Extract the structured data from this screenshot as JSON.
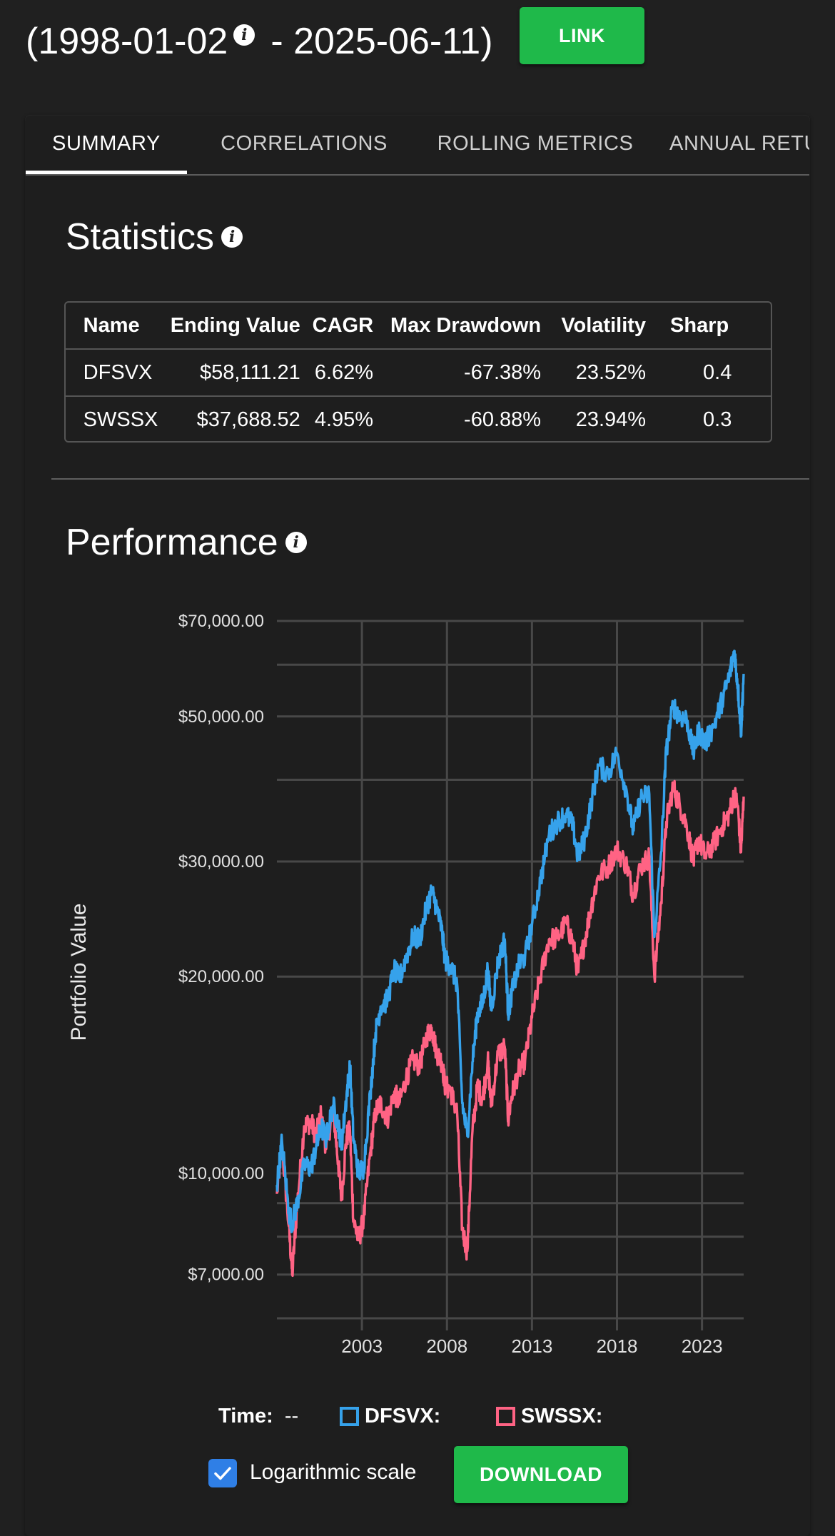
{
  "header": {
    "date_start": "(1998-01-02",
    "date_end": " - 2025-06-11)",
    "link_label": "LINK"
  },
  "tabs": [
    {
      "label": "SUMMARY",
      "active": true
    },
    {
      "label": "CORRELATIONS",
      "active": false
    },
    {
      "label": "ROLLING METRICS",
      "active": false
    },
    {
      "label": "ANNUAL RETU",
      "active": false
    }
  ],
  "statistics": {
    "title": "Statistics",
    "columns": [
      "Name",
      "Ending Value",
      "CAGR",
      "Max Drawdown",
      "Volatility",
      "Sharp"
    ],
    "rows": [
      [
        "DFSVX",
        "$58,111.21",
        "6.62%",
        "-67.38%",
        "23.52%",
        "0.4"
      ],
      [
        "SWSSX",
        "$37,688.52",
        "4.95%",
        "-60.88%",
        "23.94%",
        "0.3"
      ]
    ]
  },
  "performance": {
    "title": "Performance",
    "legend": {
      "time_label": "Time:",
      "time_value": "--",
      "series1": "DFSVX:",
      "series2": "SWSSX:"
    },
    "log_scale_label": "Logarithmic scale",
    "log_scale_checked": true,
    "download_label": "DOWNLOAD"
  },
  "colors": {
    "accent_green": "#1fb94a",
    "dfsvx": "#36a2eb",
    "swssx": "#ff6384",
    "checkbox": "#2f7fe6"
  },
  "chart_data": {
    "type": "line",
    "ylabel": "Portfolio Value",
    "xlabel": "",
    "y_scale": "log",
    "ylim": [
      6000,
      70000
    ],
    "y_ticks": [
      7000,
      10000,
      20000,
      30000,
      50000,
      70000
    ],
    "y_tick_labels": [
      "$7,000.00",
      "$10,000.00",
      "$20,000.00",
      "$30,000.00",
      "$50,000.00",
      "$70,000.00"
    ],
    "xlim": [
      1998.0,
      2025.45
    ],
    "x_ticks": [
      2003,
      2008,
      2013,
      2018,
      2023
    ],
    "x_tick_labels": [
      "2003",
      "2008",
      "2013",
      "2018",
      "2023"
    ],
    "grid": true,
    "series": [
      {
        "name": "DFSVX",
        "color": "#36a2eb",
        "x": [
          1998.0,
          1998.3,
          1998.7,
          1998.9,
          1999.2,
          1999.6,
          2000.0,
          2000.3,
          2000.6,
          2000.9,
          2001.3,
          2001.6,
          2001.8,
          2002.1,
          2002.3,
          2002.5,
          2002.8,
          2003.1,
          2003.5,
          2003.8,
          2004.1,
          2004.5,
          2004.9,
          2005.2,
          2005.6,
          2006.0,
          2006.4,
          2006.8,
          2007.1,
          2007.4,
          2007.7,
          2007.9,
          2008.2,
          2008.6,
          2008.9,
          2009.2,
          2009.5,
          2009.8,
          2010.1,
          2010.4,
          2010.6,
          2011.0,
          2011.4,
          2011.6,
          2011.8,
          2012.2,
          2012.6,
          2013.0,
          2013.5,
          2014.0,
          2014.5,
          2015.0,
          2015.4,
          2015.7,
          2016.1,
          2016.5,
          2016.9,
          2017.5,
          2018.0,
          2018.6,
          2018.95,
          2019.4,
          2019.9,
          2020.2,
          2020.6,
          2020.9,
          2021.3,
          2021.7,
          2022.1,
          2022.5,
          2022.8,
          2023.2,
          2023.7,
          2024.2,
          2024.6,
          2024.9,
          2025.1,
          2025.3,
          2025.45
        ],
        "values": [
          9600,
          11200,
          8700,
          8400,
          9000,
          10300,
          10200,
          10900,
          11800,
          11300,
          12700,
          11900,
          11000,
          13200,
          14600,
          11300,
          10000,
          10200,
          13300,
          16400,
          18000,
          18400,
          20500,
          19800,
          21400,
          23000,
          22800,
          25500,
          27000,
          25500,
          23500,
          21200,
          20800,
          19500,
          12800,
          11400,
          14800,
          17600,
          18200,
          20500,
          17800,
          21000,
          22800,
          17600,
          18800,
          20700,
          21500,
          24000,
          28000,
          33000,
          34500,
          35500,
          34000,
          30500,
          32500,
          37000,
          42000,
          41000,
          44000,
          38000,
          33500,
          37500,
          38000,
          23000,
          31000,
          44500,
          52000,
          50000,
          49500,
          44000,
          47500,
          45500,
          48500,
          53000,
          57500,
          63000,
          56000,
          47500,
          58100
        ]
      },
      {
        "name": "SWSSX",
        "color": "#ff6384",
        "x": [
          1998.0,
          1998.3,
          1998.7,
          1998.9,
          1999.2,
          1999.6,
          2000.0,
          2000.3,
          2000.6,
          2000.9,
          2001.3,
          2001.6,
          2001.8,
          2002.1,
          2002.3,
          2002.5,
          2002.8,
          2003.1,
          2003.5,
          2003.8,
          2004.1,
          2004.5,
          2004.9,
          2005.2,
          2005.6,
          2006.0,
          2006.4,
          2006.8,
          2007.1,
          2007.4,
          2007.7,
          2007.9,
          2008.2,
          2008.6,
          2008.9,
          2009.2,
          2009.5,
          2009.8,
          2010.1,
          2010.4,
          2010.6,
          2011.0,
          2011.4,
          2011.6,
          2011.8,
          2012.2,
          2012.6,
          2013.0,
          2013.5,
          2014.0,
          2014.5,
          2015.0,
          2015.4,
          2015.7,
          2016.1,
          2016.5,
          2016.9,
          2017.5,
          2018.0,
          2018.6,
          2018.95,
          2019.4,
          2019.9,
          2020.2,
          2020.6,
          2020.9,
          2021.3,
          2021.7,
          2022.1,
          2022.5,
          2022.8,
          2023.2,
          2023.7,
          2024.2,
          2024.6,
          2024.9,
          2025.1,
          2025.3,
          2025.45
        ],
        "values": [
          9300,
          11000,
          8300,
          7000,
          9000,
          11800,
          12000,
          11400,
          12300,
          10900,
          12600,
          10400,
          9200,
          11400,
          11600,
          8500,
          7900,
          8500,
          10800,
          12400,
          12800,
          12100,
          13300,
          12800,
          14000,
          14900,
          14600,
          16200,
          16700,
          15300,
          14800,
          13600,
          13400,
          12400,
          8200,
          7600,
          11600,
          13600,
          13000,
          14900,
          12700,
          15200,
          15600,
          12100,
          13100,
          14300,
          14900,
          17300,
          20000,
          22800,
          22900,
          24200,
          22600,
          20300,
          22700,
          25700,
          28500,
          29500,
          31300,
          29500,
          26700,
          29500,
          30500,
          20000,
          26000,
          34500,
          39000,
          36500,
          34000,
          30000,
          32500,
          30500,
          32000,
          34000,
          35500,
          38000,
          36500,
          31000,
          37700
        ]
      }
    ]
  }
}
